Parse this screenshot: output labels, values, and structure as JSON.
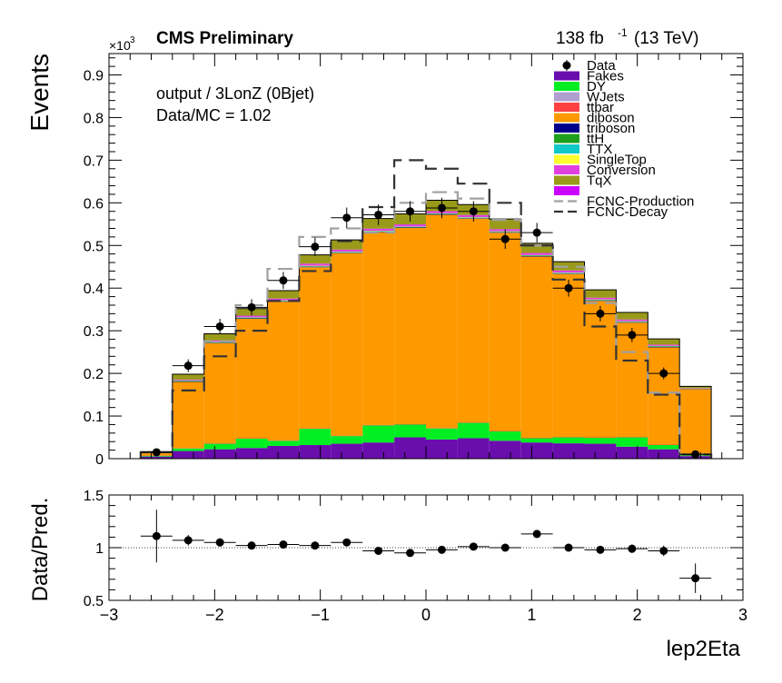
{
  "header": {
    "experiment": "CMS Preliminary",
    "lumi_value": "138 fb",
    "lumi_exp": "-1",
    "lumi_energy": "(13 TeV)",
    "exponent_base": "×10",
    "exponent_power": "3"
  },
  "annotations": {
    "region": "output / 3LonZ (0Bjet)",
    "ratio": "Data/MC = 1.02"
  },
  "colors": {
    "Fakes": "#6a0dad",
    "DY": "#00ee22",
    "WJets": "#b0a0d0",
    "ttbar": "#ff4040",
    "diboson": "#ff9900",
    "triboson": "#00008b",
    "ttH": "#1ea01e",
    "TTX": "#10c8c8",
    "SingleTop": "#ffff30",
    "Conversion": "#e040e0",
    "TqX": "#9a9a1a",
    "Extra": "#cc00ff",
    "FCNC-Production": "#a0a0a0",
    "FCNC-Decay": "#333333",
    "data": "#000000"
  },
  "chart_data": [
    {
      "type": "bar",
      "stacked": true,
      "xlabel": "lep2Eta",
      "ylabel": "Events",
      "xlim": [
        -3,
        3
      ],
      "ylim": [
        0,
        0.95
      ],
      "y_multiplier": "×10^3",
      "x_ticks": [
        "−3",
        "−2",
        "−1",
        "0",
        "1",
        "2",
        "3"
      ],
      "y_ticks": [
        "0",
        "0.1",
        "0.2",
        "0.3",
        "0.4",
        "0.5",
        "0.6",
        "0.7",
        "0.8",
        "0.9"
      ],
      "bin_edges": [
        -2.7,
        -2.4,
        -2.1,
        -1.8,
        -1.5,
        -1.2,
        -0.9,
        -0.6,
        -0.3,
        0.0,
        0.3,
        0.6,
        0.9,
        1.2,
        1.5,
        1.8,
        2.1,
        2.4,
        2.7
      ],
      "series": [
        {
          "name": "Fakes",
          "values": [
            0.005,
            0.018,
            0.022,
            0.025,
            0.03,
            0.032,
            0.035,
            0.038,
            0.05,
            0.045,
            0.048,
            0.042,
            0.038,
            0.036,
            0.035,
            0.028,
            0.022,
            0.006
          ]
        },
        {
          "name": "DY",
          "values": [
            0.002,
            0.006,
            0.013,
            0.022,
            0.012,
            0.038,
            0.018,
            0.04,
            0.03,
            0.026,
            0.036,
            0.022,
            0.01,
            0.014,
            0.014,
            0.022,
            0.01,
            0.002
          ]
        },
        {
          "name": "WJets",
          "values": [
            0,
            0,
            0,
            0,
            0,
            0,
            0,
            0,
            0,
            0,
            0,
            0,
            0,
            0,
            0,
            0,
            0,
            0
          ]
        },
        {
          "name": "ttbar",
          "values": [
            0.0005,
            0.001,
            0.001,
            0.001,
            0.001,
            0.001,
            0.001,
            0.001,
            0.001,
            0.001,
            0.001,
            0.001,
            0.001,
            0.001,
            0.001,
            0.001,
            0.001,
            0.0005
          ]
        },
        {
          "name": "diboson",
          "values": [
            0.006,
            0.155,
            0.235,
            0.28,
            0.325,
            0.378,
            0.428,
            0.452,
            0.46,
            0.5,
            0.478,
            0.465,
            0.425,
            0.382,
            0.32,
            0.268,
            0.228,
            0.155
          ]
        },
        {
          "name": "triboson",
          "values": [
            0.0005,
            0.001,
            0.001,
            0.001,
            0.001,
            0.001,
            0.001,
            0.001,
            0.001,
            0.001,
            0.001,
            0.001,
            0.001,
            0.001,
            0.001,
            0.001,
            0.001,
            0.0005
          ]
        },
        {
          "name": "ttH",
          "values": [
            0,
            0.001,
            0.001,
            0.001,
            0.001,
            0.001,
            0.001,
            0.001,
            0.001,
            0.001,
            0.001,
            0.001,
            0.001,
            0.001,
            0.001,
            0.001,
            0.001,
            0
          ]
        },
        {
          "name": "TTX",
          "values": [
            0.0005,
            0.001,
            0.001,
            0.001,
            0.001,
            0.001,
            0.001,
            0.001,
            0.001,
            0.001,
            0.001,
            0.001,
            0.001,
            0.001,
            0.001,
            0.001,
            0.001,
            0.0005
          ]
        },
        {
          "name": "SingleTop",
          "values": [
            0,
            0.0005,
            0.0005,
            0.0005,
            0.0005,
            0.0005,
            0.0005,
            0.0005,
            0.0005,
            0.0005,
            0.0005,
            0.0005,
            0.0005,
            0.0005,
            0.0005,
            0.0005,
            0.0005,
            0
          ]
        },
        {
          "name": "Conversion",
          "values": [
            0,
            0.002,
            0.003,
            0.004,
            0.004,
            0.005,
            0.005,
            0.005,
            0.005,
            0.005,
            0.005,
            0.005,
            0.005,
            0.005,
            0.004,
            0.004,
            0.003,
            0.001
          ]
        },
        {
          "name": "TqX",
          "values": [
            0.002,
            0.012,
            0.015,
            0.016,
            0.018,
            0.02,
            0.022,
            0.023,
            0.024,
            0.025,
            0.024,
            0.023,
            0.022,
            0.02,
            0.018,
            0.016,
            0.013,
            0.004
          ]
        },
        {
          "name": "",
          "values": [
            0,
            0.0005,
            0.0005,
            0.0005,
            0.0005,
            0.0005,
            0.0005,
            0.0005,
            0.0005,
            0.0005,
            0.0005,
            0.0005,
            0.0005,
            0.0005,
            0.0005,
            0.0005,
            0.0005,
            0
          ]
        }
      ],
      "overlays": [
        {
          "name": "FCNC-Production",
          "values": [
            0.015,
            0.16,
            0.275,
            0.36,
            0.445,
            0.52,
            0.54,
            0.53,
            0.6,
            0.625,
            0.61,
            0.56,
            0.5,
            0.45,
            0.365,
            0.25,
            0.155,
            0.01
          ]
        },
        {
          "name": "FCNC-Decay",
          "values": [
            0.015,
            0.16,
            0.24,
            0.3,
            0.37,
            0.44,
            0.51,
            0.59,
            0.7,
            0.68,
            0.645,
            0.6,
            0.5,
            0.42,
            0.31,
            0.23,
            0.15,
            0.01
          ]
        }
      ],
      "data": {
        "name": "Data",
        "x": [
          -2.55,
          -2.25,
          -1.95,
          -1.65,
          -1.35,
          -1.05,
          -0.75,
          -0.45,
          -0.15,
          0.15,
          0.45,
          0.75,
          1.05,
          1.35,
          1.65,
          1.95,
          2.25,
          2.55
        ],
        "y": [
          0.015,
          0.218,
          0.31,
          0.355,
          0.418,
          0.497,
          0.565,
          0.572,
          0.58,
          0.588,
          0.58,
          0.515,
          0.53,
          0.4,
          0.34,
          0.29,
          0.2,
          0.01
        ],
        "err": [
          0.004,
          0.015,
          0.018,
          0.019,
          0.02,
          0.022,
          0.024,
          0.024,
          0.024,
          0.024,
          0.024,
          0.023,
          0.023,
          0.02,
          0.018,
          0.017,
          0.014,
          0.003
        ]
      },
      "legend": {
        "position": "top-right",
        "entries": [
          "Data",
          "Fakes",
          "DY",
          "WJets",
          "ttbar",
          "diboson",
          "triboson",
          "ttH",
          "TTX",
          "SingleTop",
          "Conversion",
          "TqX",
          "",
          "FCNC-Production",
          "FCNC-Decay"
        ]
      }
    },
    {
      "type": "scatter",
      "xlabel": "lep2Eta",
      "ylabel": "Data/Pred.",
      "xlim": [
        -3,
        3
      ],
      "ylim": [
        0.5,
        1.5
      ],
      "y_ticks": [
        "0.5",
        "1",
        "1.5"
      ],
      "reference_line": 1,
      "x": [
        -2.55,
        -2.25,
        -1.95,
        -1.65,
        -1.35,
        -1.05,
        -0.75,
        -0.45,
        -0.15,
        0.15,
        0.45,
        0.75,
        1.05,
        1.35,
        1.65,
        1.95,
        2.25,
        2.55
      ],
      "y": [
        1.11,
        1.07,
        1.05,
        1.02,
        1.03,
        1.02,
        1.05,
        0.97,
        0.95,
        0.98,
        1.01,
        1.0,
        1.13,
        1.0,
        0.98,
        0.99,
        0.97,
        0.71
      ],
      "err": [
        0.25,
        0.05,
        0.04,
        0.035,
        0.035,
        0.03,
        0.03,
        0.03,
        0.03,
        0.03,
        0.03,
        0.03,
        0.03,
        0.03,
        0.035,
        0.04,
        0.05,
        0.14
      ]
    }
  ]
}
